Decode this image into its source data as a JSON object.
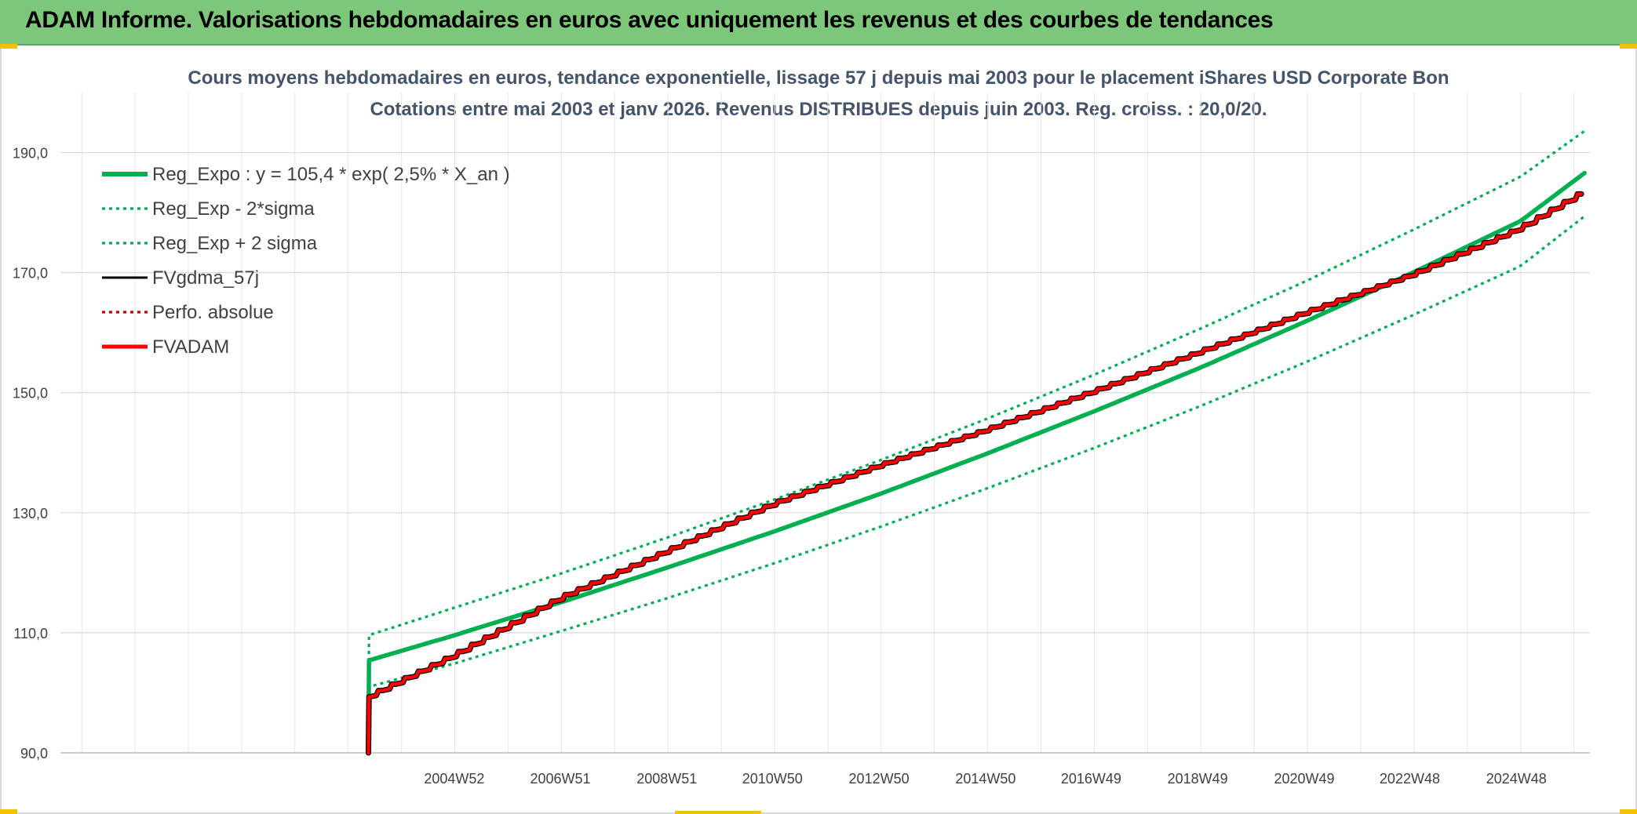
{
  "banner": {
    "title": "ADAM Informe. Valorisations hebdomadaires en euros avec uniquement les revenus et des courbes de tendances"
  },
  "colors": {
    "banner_bg": "#7dc77a",
    "reg_green": "#00b050",
    "fvgdma_black": "#000000",
    "fvadam_red": "#ff0000",
    "perfo_red": "#c00000",
    "grid": "#d9d9d9",
    "title_text": "#44546a"
  },
  "chart_data": {
    "type": "line",
    "title": "Cours moyens hebdomadaires en euros, tendance exponentielle, lissage 57 j depuis mai 2003 pour le placement iShares USD Corporate Bon",
    "subtitle": "Cotations entre mai 2003 et janv 2026. Revenus DISTRIBUES depuis juin 2003. Reg. croiss. : 20,0/20.",
    "xlabel": "",
    "ylabel": "",
    "ylim": [
      90,
      200
    ],
    "xlim": [
      1997.6,
      2026.3
    ],
    "grid": true,
    "legend_position": "top-left",
    "y_ticks": [
      "90,0",
      "110,0",
      "130,0",
      "150,0",
      "170,0",
      "190,0"
    ],
    "y_tick_values": [
      90,
      110,
      130,
      150,
      170,
      190
    ],
    "x_ticks": [
      "2004W52",
      "2006W51",
      "2008W51",
      "2010W50",
      "2012W50",
      "2014W50",
      "2016W49",
      "2018W49",
      "2020W49",
      "2022W48",
      "2024W48"
    ],
    "x_tick_values": [
      2004.99,
      2006.98,
      2008.98,
      2010.96,
      2012.96,
      2014.96,
      2016.94,
      2018.94,
      2020.94,
      2022.92,
      2024.92
    ],
    "series": [
      {
        "name": "Reg_Expo : y = 105,4 * exp( 2,5% *  X_an )",
        "style": "solid-thick",
        "color": "#00b050",
        "x": [
          2003.38,
          2003.39,
          2005,
          2007,
          2009,
          2011,
          2013,
          2015,
          2017,
          2019,
          2021,
          2023,
          2025,
          2026.2
        ],
        "values": [
          90.0,
          105.4,
          109.6,
          115.1,
          120.9,
          126.9,
          133.2,
          139.9,
          146.9,
          154.2,
          162.0,
          170.1,
          178.6,
          186.6
        ]
      },
      {
        "name": "Reg_Exp - 2*sigma",
        "style": "dotted",
        "color": "#00b050",
        "x": [
          2003.38,
          2003.39,
          2005,
          2007,
          2009,
          2011,
          2013,
          2015,
          2017,
          2019,
          2021,
          2023,
          2025,
          2026.2
        ],
        "values": [
          90.0,
          101.0,
          104.9,
          110.3,
          115.8,
          121.6,
          127.7,
          134.1,
          140.8,
          147.8,
          155.2,
          163.0,
          171.1,
          179.4
        ]
      },
      {
        "name": "Reg_Exp + 2 sigma",
        "style": "dotted",
        "color": "#00b050",
        "x": [
          2003.38,
          2003.39,
          2005,
          2007,
          2009,
          2011,
          2013,
          2015,
          2017,
          2019,
          2021,
          2023,
          2025,
          2026.2
        ],
        "values": [
          90.0,
          109.6,
          114.2,
          119.9,
          125.9,
          132.2,
          138.8,
          145.7,
          153.0,
          160.7,
          168.7,
          177.2,
          186.0,
          193.6
        ]
      },
      {
        "name": "FVgdma_57j",
        "style": "solid",
        "color": "#000000",
        "x": [
          2003.38,
          2003.39,
          2005,
          2007,
          2009,
          2011,
          2013,
          2015,
          2017,
          2019,
          2021,
          2023,
          2025,
          2026.2
        ],
        "values": [
          90.0,
          99.3,
          106.2,
          115.8,
          123.6,
          131.5,
          137.9,
          143.8,
          150.2,
          156.8,
          163.4,
          169.7,
          177.3,
          183.4
        ]
      },
      {
        "name": "Perfo. absolue",
        "style": "dotted",
        "color": "#c00000",
        "x": [
          2003.38,
          2003.39,
          2005,
          2007,
          2009,
          2011,
          2013,
          2015,
          2017,
          2019,
          2021,
          2023,
          2025,
          2026.2
        ],
        "values": [
          90.0,
          99.3,
          106.2,
          115.8,
          123.6,
          131.5,
          137.9,
          143.8,
          150.2,
          156.8,
          163.4,
          169.7,
          177.3,
          183.4
        ]
      },
      {
        "name": "FVADAM",
        "style": "solid-thick",
        "color": "#ff0000",
        "x": [
          2003.38,
          2003.39,
          2005,
          2007,
          2009,
          2011,
          2013,
          2015,
          2017,
          2019,
          2021,
          2023,
          2025,
          2026.2
        ],
        "values": [
          90.0,
          99.3,
          106.2,
          115.8,
          123.6,
          131.5,
          137.9,
          143.8,
          150.2,
          156.8,
          163.4,
          169.7,
          177.3,
          183.4
        ]
      }
    ]
  }
}
